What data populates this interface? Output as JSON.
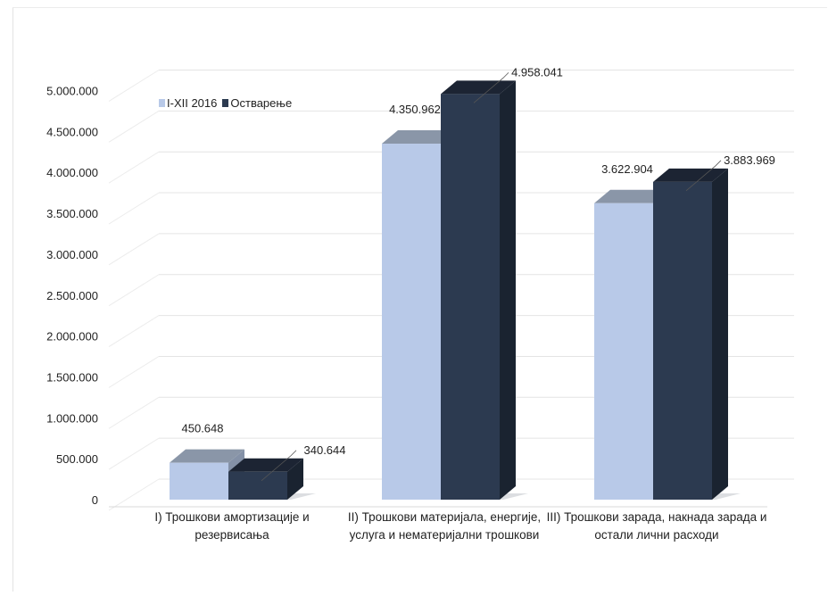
{
  "chart_data": {
    "type": "bar",
    "categories": [
      [
        "I) Трошкови амортизације и",
        "резервисања"
      ],
      [
        "II) Трошкови материјала, енергије,",
        "услуга и нематеријални трошкови"
      ],
      [
        "III) Трошкови зарада, накнада зарада и",
        "остали лични расходи"
      ]
    ],
    "series": [
      {
        "name": "I-XII 2016",
        "values": [
          450648,
          4350962,
          3622904
        ],
        "labels": [
          "450.648",
          "4.350.962",
          "3.622.904"
        ],
        "color": "#b8c9e8"
      },
      {
        "name": "Остварење",
        "values": [
          340644,
          4958041,
          3883969
        ],
        "labels": [
          "340.644",
          "4.958.041",
          "3.883.969"
        ],
        "color": "#2c3a50"
      }
    ],
    "ylim": [
      0,
      5000000
    ],
    "yticks": [
      {
        "value": 0,
        "label": "0"
      },
      {
        "value": 500000,
        "label": "500.000"
      },
      {
        "value": 1000000,
        "label": "1.000.000"
      },
      {
        "value": 1500000,
        "label": "1.500.000"
      },
      {
        "value": 2000000,
        "label": "2.000.000"
      },
      {
        "value": 2500000,
        "label": "2.500.000"
      },
      {
        "value": 3000000,
        "label": "3.000.000"
      },
      {
        "value": 3500000,
        "label": "3.500.000"
      },
      {
        "value": 4000000,
        "label": "4.000.000"
      },
      {
        "value": 4500000,
        "label": "4.500.000"
      },
      {
        "value": 5000000,
        "label": "5.000.000"
      }
    ],
    "grid": true,
    "legend": "top-left",
    "style": "3d-column"
  },
  "legend": {
    "items": [
      {
        "label": "I-XII 2016",
        "color": "#b8c9e8"
      },
      {
        "label": "Остварење",
        "color": "#2c3a50"
      }
    ]
  }
}
